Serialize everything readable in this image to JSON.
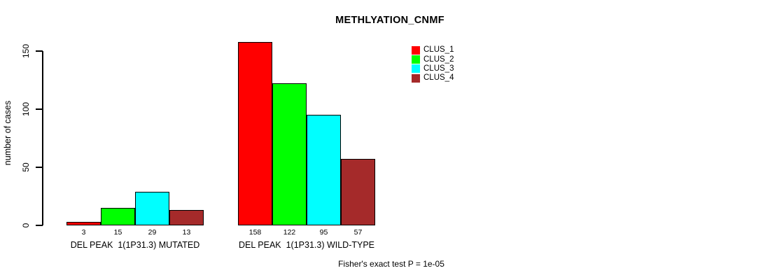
{
  "chart_data": {
    "type": "bar",
    "title": "METHLYATION_CNMF",
    "ylabel": "number of cases",
    "xlabel": "",
    "ylim": [
      0,
      158
    ],
    "yticks": [
      0,
      50,
      100,
      150
    ],
    "grid": false,
    "legend_position": "top-right-inside",
    "series": [
      "CLUS_1",
      "CLUS_2",
      "CLUS_3",
      "CLUS_4"
    ],
    "colors": [
      "#FF0000",
      "#00FF00",
      "#00FFFF",
      "#A52A2A"
    ],
    "groups": [
      {
        "label": "DEL PEAK  1(1P31.3) MUTATED",
        "values": [
          3,
          15,
          29,
          13
        ]
      },
      {
        "label": "DEL PEAK  1(1P31.3) WILD-TYPE",
        "values": [
          158,
          122,
          95,
          57
        ]
      }
    ],
    "bar_value_labels": [
      [
        3,
        15,
        29,
        13
      ],
      [
        158,
        122,
        95,
        57
      ]
    ],
    "annotation": "Fisher's exact test P = 1e-05"
  },
  "legend": {
    "items": [
      {
        "label": "CLUS_1",
        "color": "#FF0000"
      },
      {
        "label": "CLUS_2",
        "color": "#00FF00"
      },
      {
        "label": "CLUS_3",
        "color": "#00FFFF"
      },
      {
        "label": "CLUS_4",
        "color": "#A52A2A"
      }
    ]
  }
}
